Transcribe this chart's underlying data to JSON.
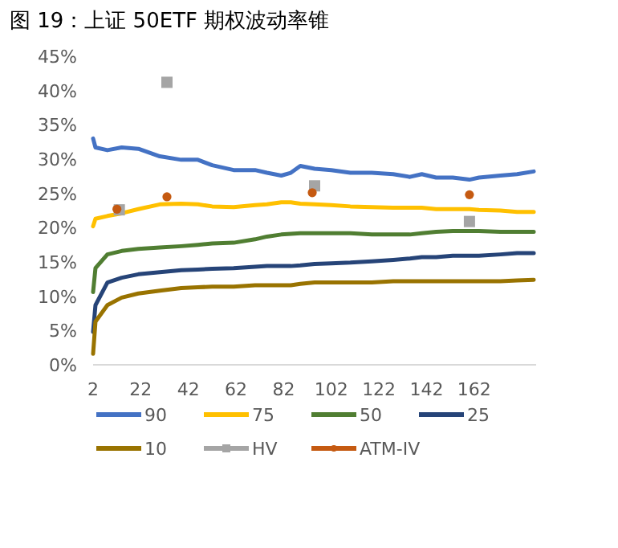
{
  "chart_data": {
    "type": "line",
    "title": "图 19：上证 50ETF 期权波动率锥",
    "x": [
      2,
      3,
      8,
      14,
      21,
      30,
      39,
      46,
      52,
      61,
      70,
      75,
      81,
      85,
      89,
      95,
      102,
      110,
      119,
      128,
      135,
      140,
      146,
      153,
      160,
      164,
      173,
      180,
      187
    ],
    "series": [
      {
        "name": "90",
        "color": "#4472c4",
        "values": [
          33.0,
          31.7,
          31.3,
          31.7,
          31.5,
          30.4,
          29.9,
          29.9,
          29.1,
          28.4,
          28.4,
          28.0,
          27.6,
          28.0,
          29.0,
          28.6,
          28.4,
          28.0,
          28.0,
          27.8,
          27.4,
          27.8,
          27.3,
          27.3,
          27.0,
          27.3,
          27.6,
          27.8,
          28.2
        ]
      },
      {
        "name": "75",
        "color": "#ffc000",
        "values": [
          20.2,
          21.3,
          21.7,
          22.1,
          22.7,
          23.4,
          23.5,
          23.4,
          23.1,
          23.0,
          23.3,
          23.4,
          23.7,
          23.7,
          23.5,
          23.4,
          23.3,
          23.1,
          23.0,
          22.9,
          22.9,
          22.9,
          22.7,
          22.7,
          22.7,
          22.6,
          22.5,
          22.3,
          22.3
        ]
      },
      {
        "name": "50",
        "color": "#507e32",
        "values": [
          10.6,
          14.1,
          16.1,
          16.6,
          16.9,
          17.1,
          17.3,
          17.5,
          17.7,
          17.8,
          18.3,
          18.7,
          19.0,
          19.1,
          19.2,
          19.2,
          19.2,
          19.2,
          19.0,
          19.0,
          19.0,
          19.2,
          19.4,
          19.5,
          19.5,
          19.5,
          19.4,
          19.4,
          19.4
        ]
      },
      {
        "name": "25",
        "color": "#264478",
        "values": [
          4.8,
          8.7,
          12.0,
          12.7,
          13.2,
          13.5,
          13.8,
          13.9,
          14.0,
          14.1,
          14.3,
          14.4,
          14.4,
          14.4,
          14.5,
          14.7,
          14.8,
          14.9,
          15.1,
          15.3,
          15.5,
          15.7,
          15.7,
          15.9,
          15.9,
          15.9,
          16.1,
          16.3,
          16.3
        ]
      },
      {
        "name": "10",
        "color": "#997300",
        "values": [
          1.6,
          6.3,
          8.7,
          9.8,
          10.4,
          10.8,
          11.2,
          11.3,
          11.4,
          11.4,
          11.6,
          11.6,
          11.6,
          11.6,
          11.8,
          12.0,
          12.0,
          12.0,
          12.0,
          12.2,
          12.2,
          12.2,
          12.2,
          12.2,
          12.2,
          12.2,
          12.2,
          12.3,
          12.4
        ]
      },
      {
        "name": "HV",
        "type": "scatter",
        "marker": "square",
        "color": "#a5a5a5",
        "x": [
          13,
          33,
          95,
          160
        ],
        "values": [
          22.6,
          41.2,
          26.1,
          20.9
        ]
      },
      {
        "name": "ATM-IV",
        "type": "scatter",
        "marker": "circle",
        "color": "#c55a11",
        "x": [
          12,
          33,
          94,
          160
        ],
        "values": [
          22.7,
          24.5,
          25.1,
          24.8
        ]
      }
    ],
    "xlim": [
      2,
      188
    ],
    "xticks": [
      2,
      22,
      42,
      62,
      82,
      102,
      122,
      142,
      162
    ],
    "ylim": [
      0,
      45
    ],
    "yticks": [
      {
        "value": 0,
        "label": "0%"
      },
      {
        "value": 5,
        "label": "5%"
      },
      {
        "value": 10,
        "label": "10%"
      },
      {
        "value": 15,
        "label": "15%"
      },
      {
        "value": 20,
        "label": "20%"
      },
      {
        "value": 25,
        "label": "25%"
      },
      {
        "value": 30,
        "label": "30%"
      },
      {
        "value": 35,
        "label": "35%"
      },
      {
        "value": 40,
        "label": "40%"
      },
      {
        "value": 45,
        "label": "45%"
      }
    ],
    "legend": "bottom"
  }
}
